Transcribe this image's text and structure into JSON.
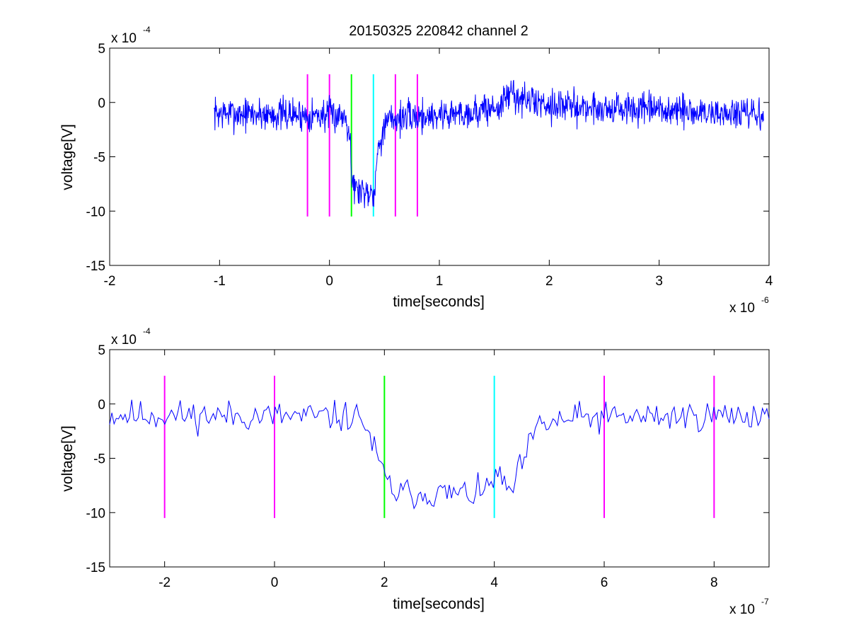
{
  "page": {
    "title": "20150325 220842 channel 2"
  },
  "chart_data": [
    {
      "type": "line",
      "title": "20150325 220842 channel 2",
      "xlabel": "time[seconds]",
      "ylabel": "voltage[V]",
      "x_multiplier": {
        "base": "x 10",
        "exp": "-6"
      },
      "y_multiplier": {
        "base": "x 10",
        "exp": "-4"
      },
      "xlim": [
        -2,
        4
      ],
      "ylim": [
        -15,
        5
      ],
      "xticks": [
        -2,
        -1,
        0,
        1,
        2,
        3,
        4
      ],
      "xtick_labels": [
        "-2",
        "-1",
        "0",
        "1",
        "2",
        "3",
        "4"
      ],
      "yticks": [
        -15,
        -10,
        -5,
        0,
        5
      ],
      "ytick_labels": [
        "-15",
        "-10",
        "-5",
        "0",
        "5"
      ],
      "grid": false,
      "series": [
        {
          "color": "#0000ff",
          "x_range": [
            -1.05,
            3.95
          ],
          "points": 1250,
          "noise": 1.1,
          "seed": 7,
          "profile": [
            [
              -1.05,
              -1.0
            ],
            [
              0.15,
              -1.2
            ],
            [
              0.19,
              -3.0
            ],
            [
              0.2,
              -7.0
            ],
            [
              0.24,
              -8.0
            ],
            [
              0.36,
              -8.2
            ],
            [
              0.41,
              -8.0
            ],
            [
              0.45,
              -3.5
            ],
            [
              0.55,
              -1.5
            ],
            [
              1.3,
              -0.9
            ],
            [
              1.55,
              -0.4
            ],
            [
              1.65,
              1.0
            ],
            [
              1.75,
              0.2
            ],
            [
              2.2,
              -0.4
            ],
            [
              3.95,
              -1.2
            ]
          ]
        }
      ],
      "vlines": [
        {
          "x": -0.2,
          "color": "#ff00ff",
          "ymin": -10.5,
          "ymax": 2.6
        },
        {
          "x": 0.0,
          "color": "#ff00ff",
          "ymin": -10.5,
          "ymax": 2.6
        },
        {
          "x": 0.2,
          "color": "#00ff00",
          "ymin": -10.5,
          "ymax": 2.6
        },
        {
          "x": 0.4,
          "color": "#00ffff",
          "ymin": -10.5,
          "ymax": 2.6
        },
        {
          "x": 0.6,
          "color": "#ff00ff",
          "ymin": -10.5,
          "ymax": 2.6
        },
        {
          "x": 0.8,
          "color": "#ff00ff",
          "ymin": -10.5,
          "ymax": 2.6
        }
      ]
    },
    {
      "type": "line",
      "title": "",
      "xlabel": "time[seconds]",
      "ylabel": "voltage[V]",
      "x_multiplier": {
        "base": "x 10",
        "exp": "-7"
      },
      "y_multiplier": {
        "base": "x 10",
        "exp": "-4"
      },
      "xlim": [
        -3,
        9
      ],
      "ylim": [
        -15,
        5
      ],
      "xticks": [
        -2,
        0,
        2,
        4,
        6,
        8
      ],
      "xtick_labels": [
        "-2",
        "0",
        "2",
        "4",
        "6",
        "8"
      ],
      "yticks": [
        -15,
        -10,
        -5,
        0,
        5
      ],
      "ytick_labels": [
        "-15",
        "-10",
        "-5",
        "0",
        "5"
      ],
      "grid": false,
      "series": [
        {
          "color": "#0000ff",
          "x_range": [
            -3,
            9
          ],
          "points": 300,
          "noise": 1.0,
          "seed": 11,
          "profile": [
            [
              -3,
              -1.0
            ],
            [
              1.6,
              -1.2
            ],
            [
              1.9,
              -5.5
            ],
            [
              2.05,
              -7.2
            ],
            [
              2.2,
              -8.2
            ],
            [
              3.8,
              -8.3
            ],
            [
              4.0,
              -6.5
            ],
            [
              4.3,
              -8.2
            ],
            [
              4.55,
              -5.0
            ],
            [
              4.8,
              -2.0
            ],
            [
              5.5,
              -1.3
            ],
            [
              9.0,
              -1.0
            ]
          ]
        }
      ],
      "vlines": [
        {
          "x": -2,
          "color": "#ff00ff",
          "ymin": -10.5,
          "ymax": 2.6
        },
        {
          "x": 0,
          "color": "#ff00ff",
          "ymin": -10.5,
          "ymax": 2.6
        },
        {
          "x": 2,
          "color": "#00ff00",
          "ymin": -10.5,
          "ymax": 2.6
        },
        {
          "x": 4,
          "color": "#00ffff",
          "ymin": -10.5,
          "ymax": 2.6
        },
        {
          "x": 6,
          "color": "#ff00ff",
          "ymin": -10.5,
          "ymax": 2.6
        },
        {
          "x": 8,
          "color": "#ff00ff",
          "ymin": -10.5,
          "ymax": 2.6
        }
      ]
    }
  ]
}
